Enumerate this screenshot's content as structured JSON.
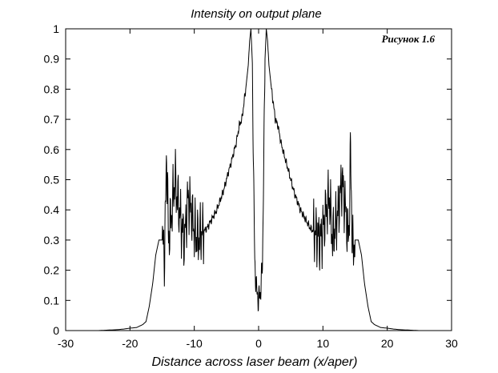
{
  "chart_data": {
    "type": "line",
    "title": "Intensity on output plane",
    "xlabel": "Distance across laser beam (x/aper)",
    "ylabel": "",
    "annotation": "Рисунок 1.6",
    "xlim": [
      -30,
      30
    ],
    "ylim": [
      0,
      1
    ],
    "xticks": [
      -30,
      -20,
      -10,
      0,
      10,
      20,
      30
    ],
    "yticks": [
      0,
      0.1,
      0.2,
      0.3,
      0.4,
      0.5,
      0.6,
      0.7,
      0.8,
      0.9,
      1
    ],
    "xtick_labels": [
      "-30",
      "-20",
      "-10",
      "0",
      "10",
      "20",
      "30"
    ],
    "ytick_labels": [
      "0",
      "0.1",
      "0.2",
      "0.3",
      "0.4",
      "0.5",
      "0.6",
      "0.7",
      "0.8",
      "0.9",
      "1"
    ],
    "grid": false,
    "line_color": "#000000",
    "series": [
      {
        "symmetric_about_zero": true,
        "x": [
          0,
          0.3,
          0.6,
          0.8,
          1.0,
          1.2,
          1.4,
          1.6,
          1.8,
          2.0,
          2.3,
          2.6,
          3.0,
          3.5,
          4.0,
          4.5,
          5.0,
          5.5,
          6.0,
          6.5,
          7.0,
          7.5,
          8.0,
          8.5,
          9.0,
          9.5,
          10.0,
          10.5,
          11.0,
          11.5,
          12.0,
          12.5,
          13.0,
          13.5,
          14.0,
          14.3,
          14.6,
          15.0,
          15.5,
          16.0,
          16.5,
          17.0,
          17.5,
          18.0,
          19.0,
          20.0,
          21.0,
          22.0,
          23.0,
          24.0,
          25.0
        ],
        "y": [
          0.1,
          0.13,
          0.22,
          0.55,
          0.9,
          1.0,
          0.96,
          0.88,
          0.84,
          0.8,
          0.75,
          0.7,
          0.68,
          0.62,
          0.58,
          0.54,
          0.5,
          0.46,
          0.43,
          0.4,
          0.38,
          0.36,
          0.34,
          0.33,
          0.32,
          0.3,
          0.33,
          0.4,
          0.44,
          0.3,
          0.35,
          0.42,
          0.5,
          0.4,
          0.3,
          0.59,
          0.26,
          0.3,
          0.3,
          0.25,
          0.15,
          0.08,
          0.03,
          0.02,
          0.01,
          0.008,
          0.005,
          0.003,
          0.002,
          0.001,
          0.0
        ]
      }
    ]
  }
}
